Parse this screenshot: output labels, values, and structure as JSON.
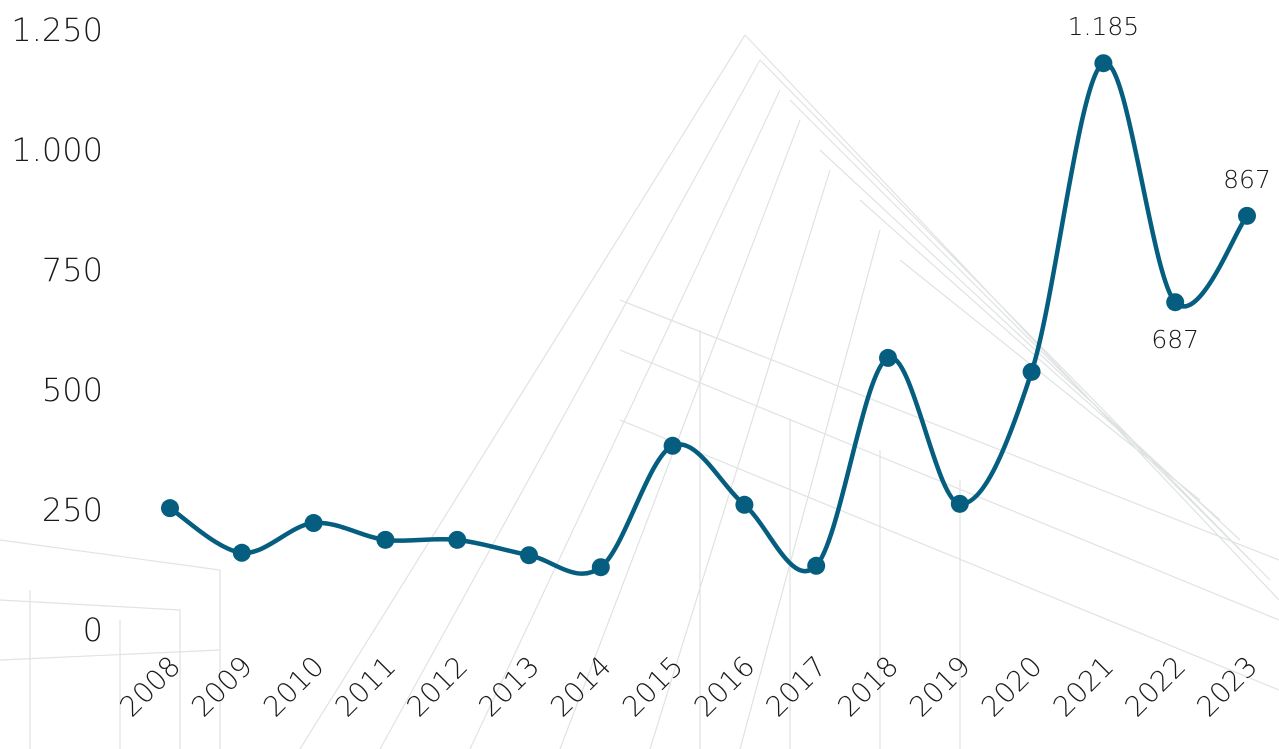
{
  "chart_data": {
    "type": "line",
    "categories": [
      "2008",
      "2009",
      "2010",
      "2011",
      "2012",
      "2013",
      "2014",
      "2015",
      "2016",
      "2017",
      "2018",
      "2019",
      "2020",
      "2021",
      "2022",
      "2023"
    ],
    "values": [
      258,
      165,
      227,
      192,
      192,
      160,
      135,
      388,
      265,
      138,
      571,
      267,
      542,
      1185,
      687,
      867
    ],
    "value_labels": [
      null,
      null,
      null,
      null,
      null,
      null,
      null,
      null,
      null,
      null,
      null,
      null,
      null,
      "1.185",
      "687",
      "867"
    ],
    "color": "#055e7f",
    "ylim": [
      0,
      1250
    ],
    "yticks": [
      0,
      250,
      500,
      750,
      {
        "value": 1000,
        "label": "1.000"
      },
      {
        "value": 1250,
        "label": "1.250"
      }
    ],
    "grid": false
  }
}
